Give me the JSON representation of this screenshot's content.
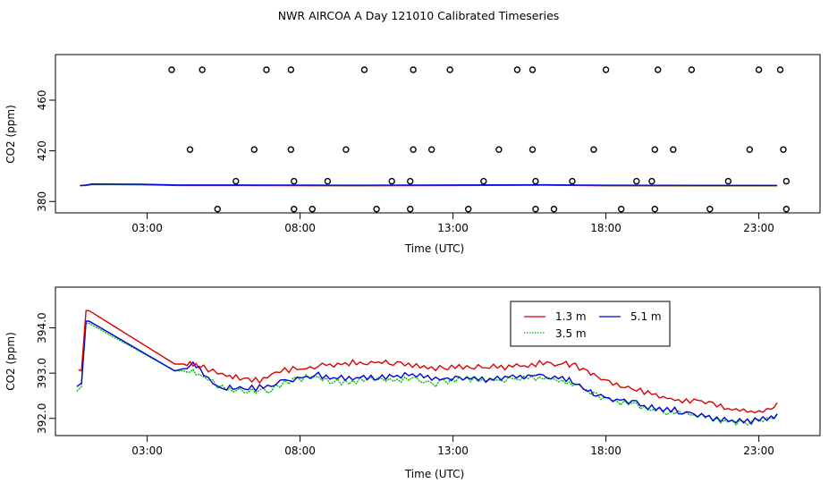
{
  "title": "NWR AIRCOA A  Day 121010  Calibrated Timeseries",
  "chart_data": [
    {
      "type": "scatter",
      "name": "upper-panel",
      "xlabel": "Time (UTC)",
      "ylabel": "CO2 (ppm)",
      "xlim": [
        0,
        25
      ],
      "ylim": [
        371,
        496
      ],
      "xticks": [
        3,
        8,
        13,
        18,
        23
      ],
      "xtick_labels": [
        "03:00",
        "08:00",
        "13:00",
        "18:00",
        "23:00"
      ],
      "yticks": [
        380,
        420,
        460
      ],
      "ytick_labels": [
        "380",
        "420",
        "460"
      ],
      "points": {
        "x": [
          3.8,
          4.8,
          6.9,
          7.7,
          4.4,
          6.5,
          7.7,
          9.5,
          11.7,
          12.3,
          14.5,
          15.6,
          17.6,
          19.6,
          20.2,
          22.7,
          23.8,
          5.9,
          7.8,
          8.9,
          11.0,
          11.6,
          14.0,
          15.7,
          16.9,
          19.0,
          19.5,
          22.0,
          23.9,
          5.3,
          7.8,
          8.4,
          10.5,
          11.6,
          13.5,
          15.7,
          16.3,
          18.5,
          19.6,
          21.4,
          23.9,
          10.1,
          11.7,
          12.9,
          15.1,
          15.6,
          18.0,
          19.7,
          20.8,
          23.0,
          23.7
        ],
        "y": [
          484,
          484,
          484,
          484,
          421,
          421,
          421,
          421,
          421,
          421,
          421,
          421,
          421,
          421,
          421,
          421,
          421,
          396,
          396,
          396,
          396,
          396,
          396,
          396,
          396,
          396,
          396,
          396,
          396,
          374,
          374,
          374,
          374,
          374,
          374,
          374,
          374,
          374,
          374,
          374,
          374,
          484,
          484,
          484,
          484,
          484,
          484,
          484,
          484,
          484,
          484
        ]
      },
      "series": [
        {
          "name": "1.3 m",
          "color": "#dd0000"
        },
        {
          "name": "3.5 m",
          "color": "#00bb00"
        },
        {
          "name": "5.1 m",
          "color": "#0000dd"
        }
      ]
    },
    {
      "type": "line",
      "name": "lower-panel",
      "xlabel": "Time (UTC)",
      "ylabel": "CO2 (ppm)",
      "xlim": [
        0,
        25
      ],
      "ylim": [
        391.62,
        394.9
      ],
      "xticks": [
        3,
        8,
        13,
        18,
        23
      ],
      "xtick_labels": [
        "03:00",
        "08:00",
        "13:00",
        "18:00",
        "23:00"
      ],
      "yticks": [
        392.0,
        393.0,
        394.0
      ],
      "ytick_labels": [
        "392.0",
        "393.0",
        "394.0"
      ],
      "legend": {
        "entries": [
          {
            "label": "1.3 m",
            "color": "#dd0000",
            "dash": "solid"
          },
          {
            "label": "5.1 m",
            "color": "#0000dd",
            "dash": "solid"
          },
          {
            "label": "3.5 m",
            "color": "#00bb00",
            "dash": "dotted"
          }
        ]
      },
      "series": [
        {
          "name": "1.3 m",
          "color": "#dd0000",
          "x": [
            0.75,
            0.85,
            1.0,
            1.1,
            3.9,
            4.2,
            4.4,
            4.5,
            4.7,
            5.0,
            5.3,
            5.6,
            5.9,
            6.3,
            6.8,
            7.2,
            7.5,
            7.9,
            8.2,
            8.6,
            9.1,
            9.6,
            10.2,
            10.8,
            11.3,
            11.8,
            12.3,
            12.7,
            13.2,
            13.7,
            14.2,
            14.7,
            15.2,
            15.7,
            16.2,
            16.7,
            17.0,
            17.4,
            17.7,
            18.1,
            18.6,
            19.0,
            19.5,
            20.0,
            20.5,
            21.0,
            21.5,
            22.0,
            22.5,
            23.0,
            23.4,
            23.6
          ],
          "y": [
            393.08,
            393.05,
            394.38,
            394.38,
            393.2,
            393.2,
            393.26,
            393.22,
            393.14,
            393.08,
            393.02,
            392.95,
            392.9,
            392.85,
            392.85,
            393.0,
            393.05,
            393.1,
            393.12,
            393.15,
            393.2,
            393.23,
            393.24,
            393.22,
            393.18,
            393.17,
            393.1,
            393.1,
            393.15,
            393.16,
            393.14,
            393.12,
            393.15,
            393.21,
            393.22,
            393.2,
            393.18,
            393.05,
            392.9,
            392.8,
            392.72,
            392.65,
            392.55,
            392.45,
            392.4,
            392.35,
            392.3,
            392.2,
            392.15,
            392.15,
            392.2,
            392.35
          ]
        },
        {
          "name": "3.5 m",
          "color": "#00bb00",
          "x": [
            0.7,
            0.85,
            1.0,
            1.1,
            3.9,
            4.2,
            4.4,
            4.5,
            4.7,
            5.0,
            5.3,
            5.6,
            5.9,
            6.3,
            6.8,
            7.2,
            7.5,
            7.9,
            8.2,
            8.6,
            9.1,
            9.6,
            10.2,
            10.8,
            11.3,
            11.8,
            12.3,
            12.7,
            13.2,
            13.7,
            14.2,
            14.7,
            15.2,
            15.7,
            16.2,
            16.7,
            17.0,
            17.4,
            17.7,
            18.1,
            18.6,
            19.0,
            19.5,
            20.0,
            20.5,
            21.0,
            21.5,
            22.0,
            22.5,
            23.0,
            23.4,
            23.6
          ],
          "y": [
            392.6,
            392.7,
            394.1,
            394.1,
            393.05,
            393.05,
            393.0,
            393.02,
            393.0,
            392.85,
            392.72,
            392.68,
            392.62,
            392.62,
            392.6,
            392.68,
            392.78,
            392.85,
            392.9,
            392.88,
            392.82,
            392.8,
            392.9,
            392.88,
            392.85,
            392.88,
            392.75,
            392.8,
            392.88,
            392.85,
            392.84,
            392.86,
            392.9,
            392.87,
            392.88,
            392.82,
            392.75,
            392.6,
            392.5,
            392.42,
            392.35,
            392.28,
            392.2,
            392.15,
            392.12,
            392.05,
            392.0,
            391.92,
            391.9,
            391.95,
            392.0,
            392.1
          ]
        },
        {
          "name": "5.1 m",
          "color": "#0000dd",
          "x": [
            0.7,
            0.85,
            1.0,
            1.1,
            3.9,
            4.2,
            4.4,
            4.5,
            4.7,
            5.0,
            5.3,
            5.6,
            5.9,
            6.3,
            6.8,
            7.2,
            7.5,
            7.9,
            8.2,
            8.6,
            9.1,
            9.6,
            10.2,
            10.8,
            11.3,
            11.8,
            12.3,
            12.7,
            13.2,
            13.7,
            14.2,
            14.7,
            15.2,
            15.7,
            16.2,
            16.7,
            17.0,
            17.4,
            17.7,
            18.1,
            18.6,
            19.0,
            19.5,
            20.0,
            20.5,
            21.0,
            21.5,
            22.0,
            22.5,
            23.0,
            23.4,
            23.6
          ],
          "y": [
            392.7,
            392.78,
            394.15,
            394.15,
            393.05,
            393.1,
            393.12,
            393.2,
            393.1,
            392.85,
            392.75,
            392.7,
            392.68,
            392.67,
            392.68,
            392.75,
            392.82,
            392.88,
            392.92,
            392.95,
            392.9,
            392.88,
            392.92,
            392.9,
            392.95,
            392.98,
            392.9,
            392.85,
            392.88,
            392.87,
            392.86,
            392.9,
            392.93,
            392.95,
            392.93,
            392.88,
            392.8,
            392.6,
            392.5,
            392.45,
            392.4,
            392.32,
            392.25,
            392.2,
            392.15,
            392.1,
            392.02,
            391.95,
            391.92,
            391.95,
            392.0,
            392.1
          ]
        }
      ]
    }
  ]
}
